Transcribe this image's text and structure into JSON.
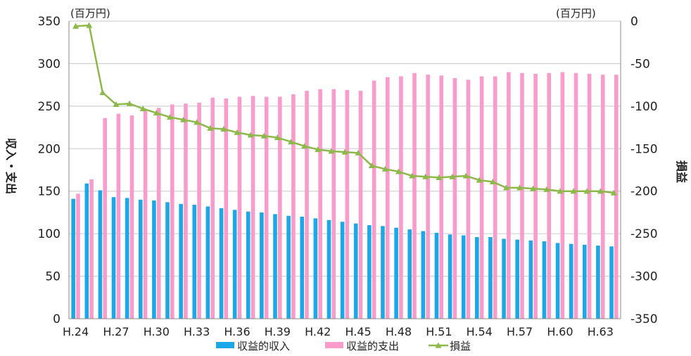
{
  "chart_data": {
    "type": "bar",
    "left_unit": "(百万円)",
    "right_unit": "(百万円)",
    "ylabel_left": "収入・支出",
    "ylabel_right": "損益",
    "ylim_left": [
      0,
      350
    ],
    "ylim_right": [
      -350,
      0
    ],
    "yticks_left": [
      "350",
      "300",
      "250",
      "200",
      "150",
      "100",
      "50",
      "0"
    ],
    "yticks_right": [
      "0",
      "-50",
      "-100",
      "-150",
      "-200",
      "-250",
      "-300",
      "-350"
    ],
    "xtick_labels": [
      "H.24",
      "H.27",
      "H.30",
      "H.33",
      "H.36",
      "H.39",
      "H.42",
      "H.45",
      "H.48",
      "H.51",
      "H.54",
      "H.57",
      "H.60",
      "H.63"
    ],
    "categories": [
      "H.24",
      "H.25",
      "H.26",
      "H.27",
      "H.28",
      "H.29",
      "H.30",
      "H.31",
      "H.32",
      "H.33",
      "H.34",
      "H.35",
      "H.36",
      "H.37",
      "H.38",
      "H.39",
      "H.40",
      "H.41",
      "H.42",
      "H.43",
      "H.44",
      "H.45",
      "H.46",
      "H.47",
      "H.48",
      "H.49",
      "H.50",
      "H.51",
      "H.52",
      "H.53",
      "H.54",
      "H.55",
      "H.56",
      "H.57",
      "H.58",
      "H.59",
      "H.60",
      "H.61",
      "H.62",
      "H.63",
      "H.64"
    ],
    "series": [
      {
        "name": "収益的収入",
        "axis": "left",
        "type": "bar",
        "color": "#1aa8e8",
        "values": [
          141,
          159,
          151,
          143,
          142,
          140,
          139,
          137,
          135,
          134,
          132,
          130,
          128,
          126,
          125,
          123,
          121,
          120,
          118,
          116,
          114,
          112,
          110,
          109,
          107,
          105,
          103,
          101,
          99,
          98,
          96,
          96,
          94,
          93,
          92,
          91,
          89,
          88,
          87,
          86,
          85
        ]
      },
      {
        "name": "収益的支出",
        "axis": "left",
        "type": "bar",
        "color": "#f99ccc",
        "values": [
          147,
          164,
          236,
          241,
          239,
          246,
          248,
          252,
          253,
          254,
          260,
          259,
          261,
          262,
          261,
          261,
          264,
          268,
          270,
          270,
          269,
          268,
          280,
          284,
          285,
          289,
          287,
          286,
          283,
          281,
          285,
          285,
          290,
          289,
          288,
          289,
          290,
          289,
          288,
          287,
          287
        ]
      },
      {
        "name": "損益",
        "axis": "right",
        "type": "line",
        "color": "#8db84a",
        "values": [
          -6,
          -5,
          -84,
          -98,
          -97,
          -103,
          -108,
          -113,
          -116,
          -119,
          -126,
          -127,
          -131,
          -134,
          -135,
          -137,
          -142,
          -147,
          -151,
          -153,
          -154,
          -155,
          -170,
          -174,
          -177,
          -182,
          -183,
          -184,
          -183,
          -182,
          -187,
          -189,
          -196,
          -196,
          -197,
          -198,
          -200,
          -200,
          -200,
          -200,
          -202
        ]
      }
    ],
    "legend": {
      "placement": "bottom",
      "items": [
        "収益的収入",
        "収益的支出",
        "損益"
      ]
    }
  }
}
